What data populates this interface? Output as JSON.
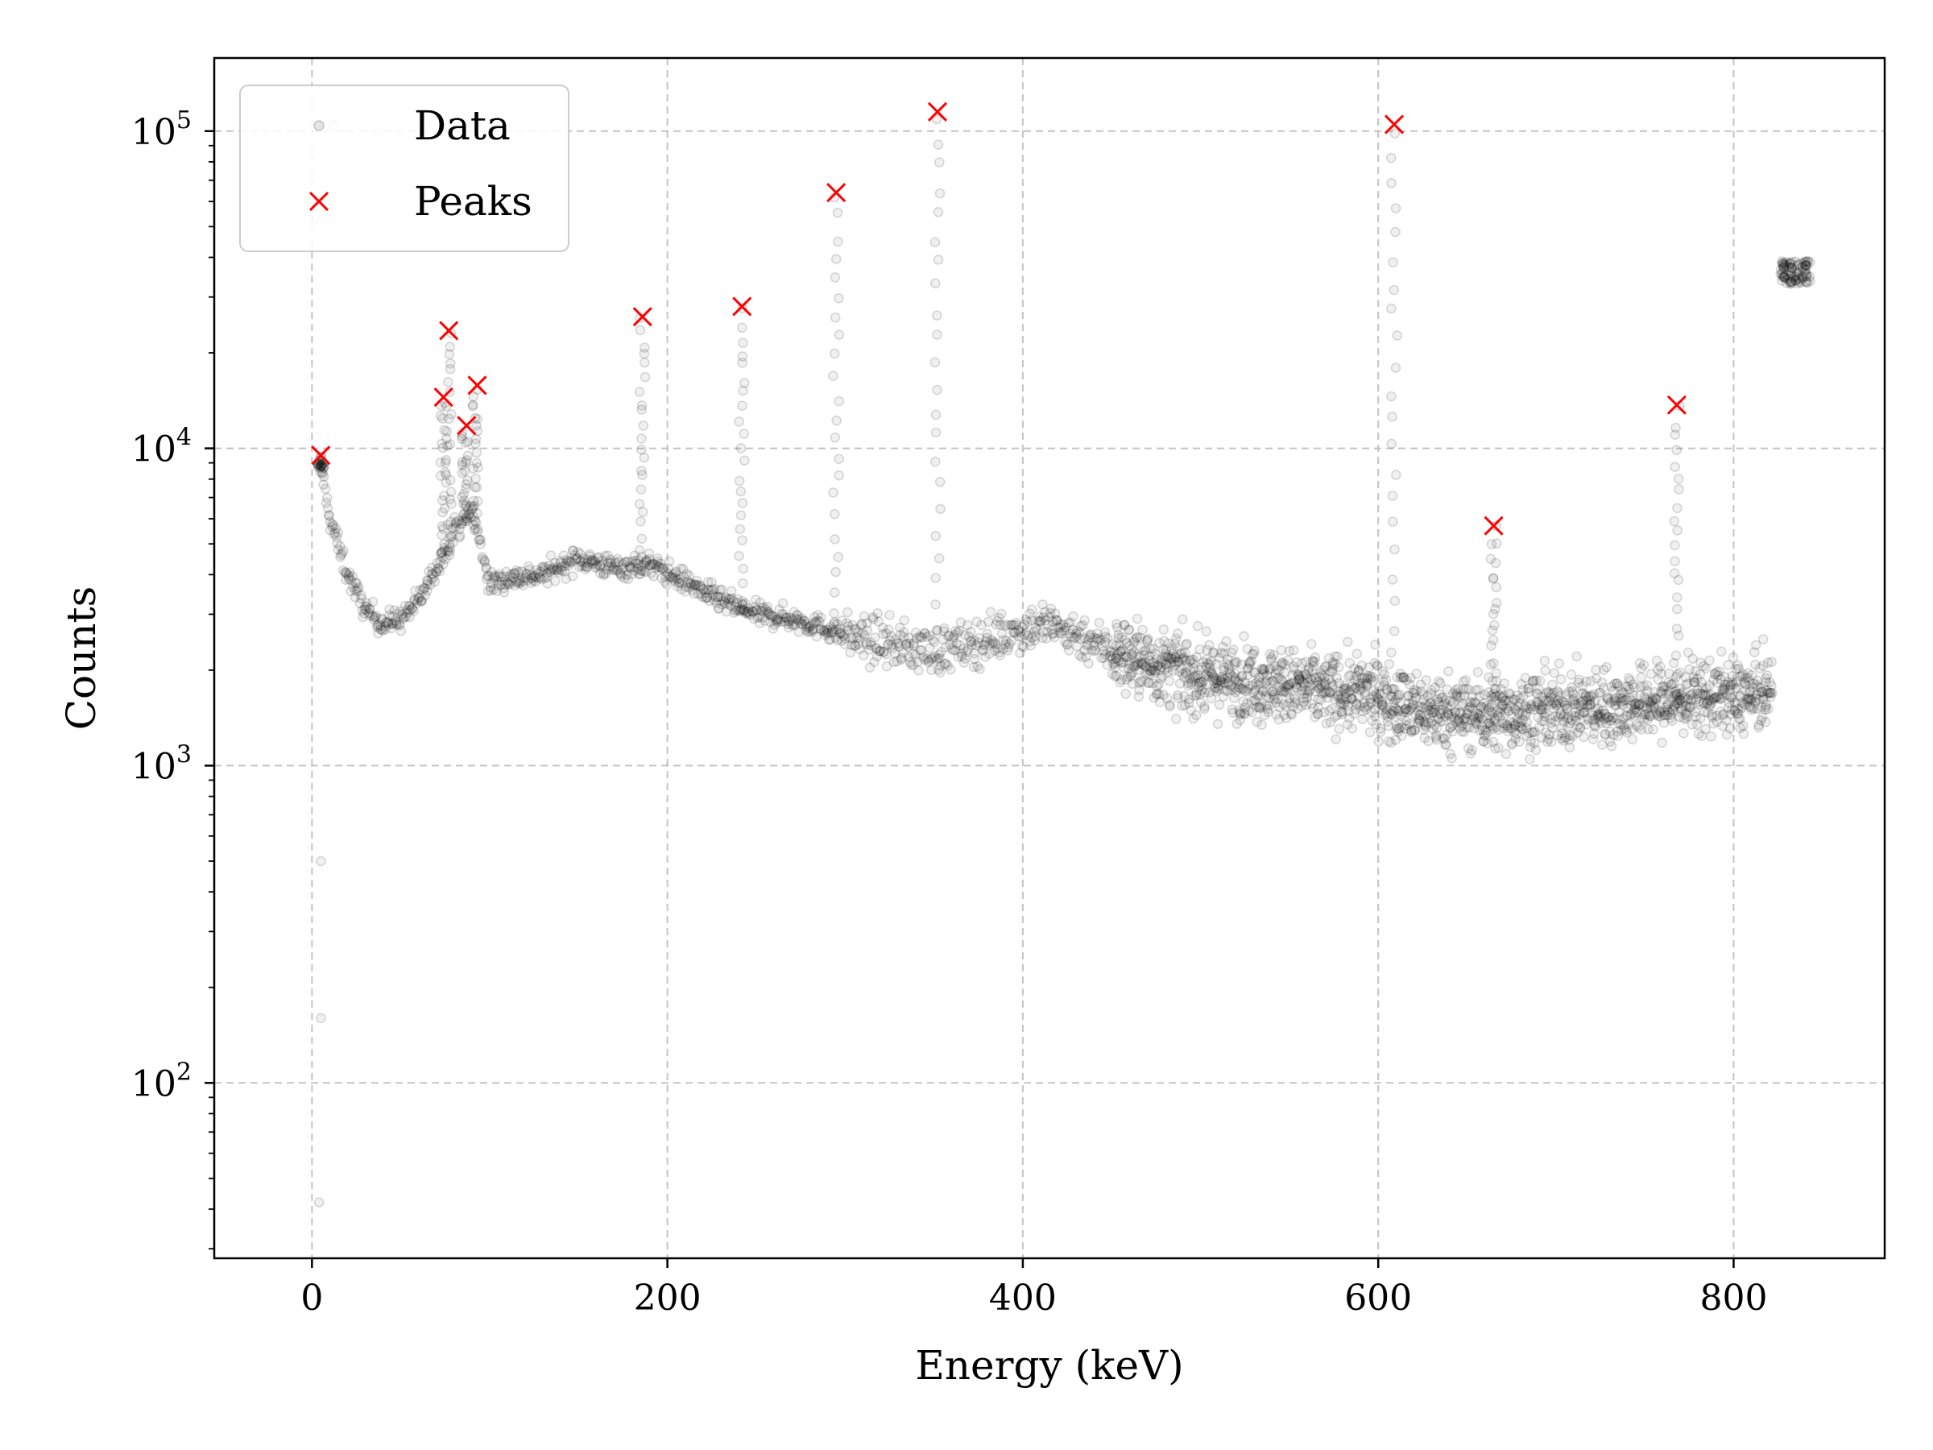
{
  "chart_data": {
    "type": "scatter",
    "xlabel": "Energy (keV)",
    "ylabel": "Counts",
    "xlim": [
      -55,
      885
    ],
    "ylim": [
      28,
      170000
    ],
    "yscale": "log",
    "grid": true,
    "legend_position": "top-left",
    "x_ticks": [
      0,
      200,
      400,
      600,
      800
    ],
    "x_tick_labels": [
      "0",
      "200",
      "400",
      "600",
      "800"
    ],
    "y_ticks": [
      100,
      1000,
      10000,
      100000
    ],
    "y_tick_bases": [
      "10",
      "10",
      "10",
      "10"
    ],
    "y_tick_exponents": [
      "2",
      "3",
      "4",
      "5"
    ],
    "series": [
      {
        "name": "Data",
        "color": "#000000",
        "marker": "circle",
        "alpha": 0.08,
        "background_profile": [
          [
            5,
            9000
          ],
          [
            10,
            6000
          ],
          [
            20,
            4000
          ],
          [
            30,
            3100
          ],
          [
            40,
            2800
          ],
          [
            50,
            2900
          ],
          [
            60,
            3300
          ],
          [
            70,
            4200
          ],
          [
            80,
            5500
          ],
          [
            90,
            6500
          ],
          [
            100,
            3700
          ],
          [
            110,
            3900
          ],
          [
            130,
            4000
          ],
          [
            150,
            4500
          ],
          [
            170,
            4200
          ],
          [
            190,
            4300
          ],
          [
            210,
            3800
          ],
          [
            230,
            3300
          ],
          [
            250,
            3000
          ],
          [
            270,
            2900
          ],
          [
            290,
            2700
          ],
          [
            310,
            2500
          ],
          [
            330,
            2400
          ],
          [
            350,
            2300
          ],
          [
            370,
            2400
          ],
          [
            390,
            2600
          ],
          [
            410,
            2800
          ],
          [
            430,
            2600
          ],
          [
            450,
            2300
          ],
          [
            470,
            2100
          ],
          [
            500,
            1900
          ],
          [
            530,
            1850
          ],
          [
            560,
            1750
          ],
          [
            600,
            1650
          ],
          [
            620,
            1500
          ],
          [
            660,
            1450
          ],
          [
            700,
            1500
          ],
          [
            740,
            1550
          ],
          [
            780,
            1650
          ],
          [
            800,
            1650
          ],
          [
            822,
            1700
          ]
        ],
        "peak_lines": [
          [
            5,
            9500
          ],
          [
            74,
            14500
          ],
          [
            77,
            23500
          ],
          [
            86,
            11800
          ],
          [
            92,
            15800
          ],
          [
            186,
            26000
          ],
          [
            242,
            28000
          ],
          [
            295,
            64000
          ],
          [
            352,
            115000
          ],
          [
            609,
            105000
          ],
          [
            665,
            5700
          ],
          [
            768,
            13700
          ]
        ],
        "cluster": {
          "x_range": [
            826,
            843
          ],
          "y_range": [
            33000,
            39000
          ]
        },
        "outliers": [
          [
            4,
            42
          ],
          [
            5,
            160
          ],
          [
            5,
            500
          ],
          [
            12,
            105000
          ]
        ]
      },
      {
        "name": "Peaks",
        "color": "#ff0000",
        "marker": "x",
        "points": [
          [
            5,
            9500
          ],
          [
            74,
            14500
          ],
          [
            77,
            23500
          ],
          [
            87,
            11800
          ],
          [
            93,
            15800
          ],
          [
            186,
            26000
          ],
          [
            242,
            28000
          ],
          [
            295,
            64000
          ],
          [
            352,
            115000
          ],
          [
            609,
            105000
          ],
          [
            665,
            5700
          ],
          [
            768,
            13700
          ]
        ]
      }
    ]
  }
}
